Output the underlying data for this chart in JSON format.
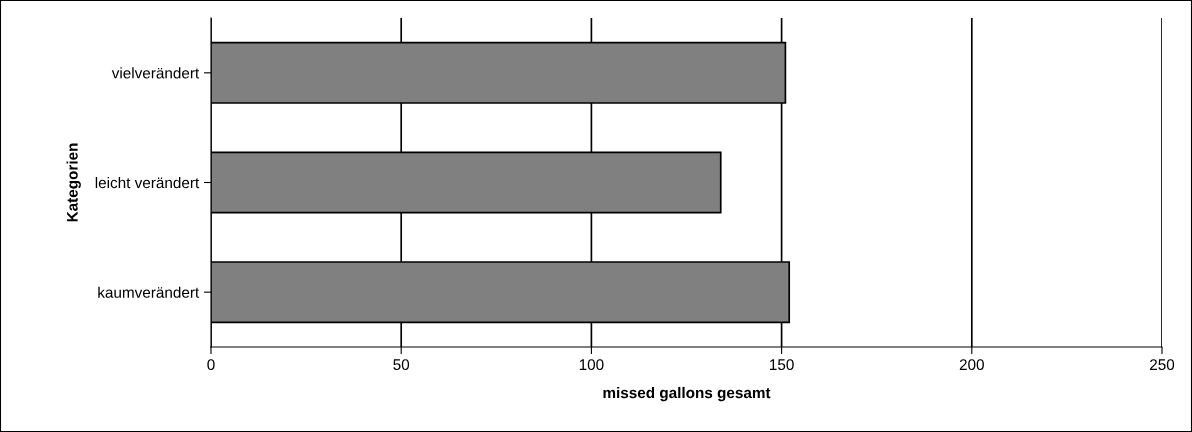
{
  "chart_data": {
    "type": "bar",
    "orientation": "horizontal",
    "xlabel": "missed gallons gesamt",
    "ylabel": "Kategorien",
    "categories": [
      "vielverändert",
      "leicht verändert",
      "kaumverändert"
    ],
    "values": [
      151,
      134,
      152
    ],
    "color": "#808080",
    "xlim": [
      0,
      250
    ],
    "xticks": [
      0,
      50,
      100,
      150,
      200,
      250
    ],
    "grid": "x"
  }
}
